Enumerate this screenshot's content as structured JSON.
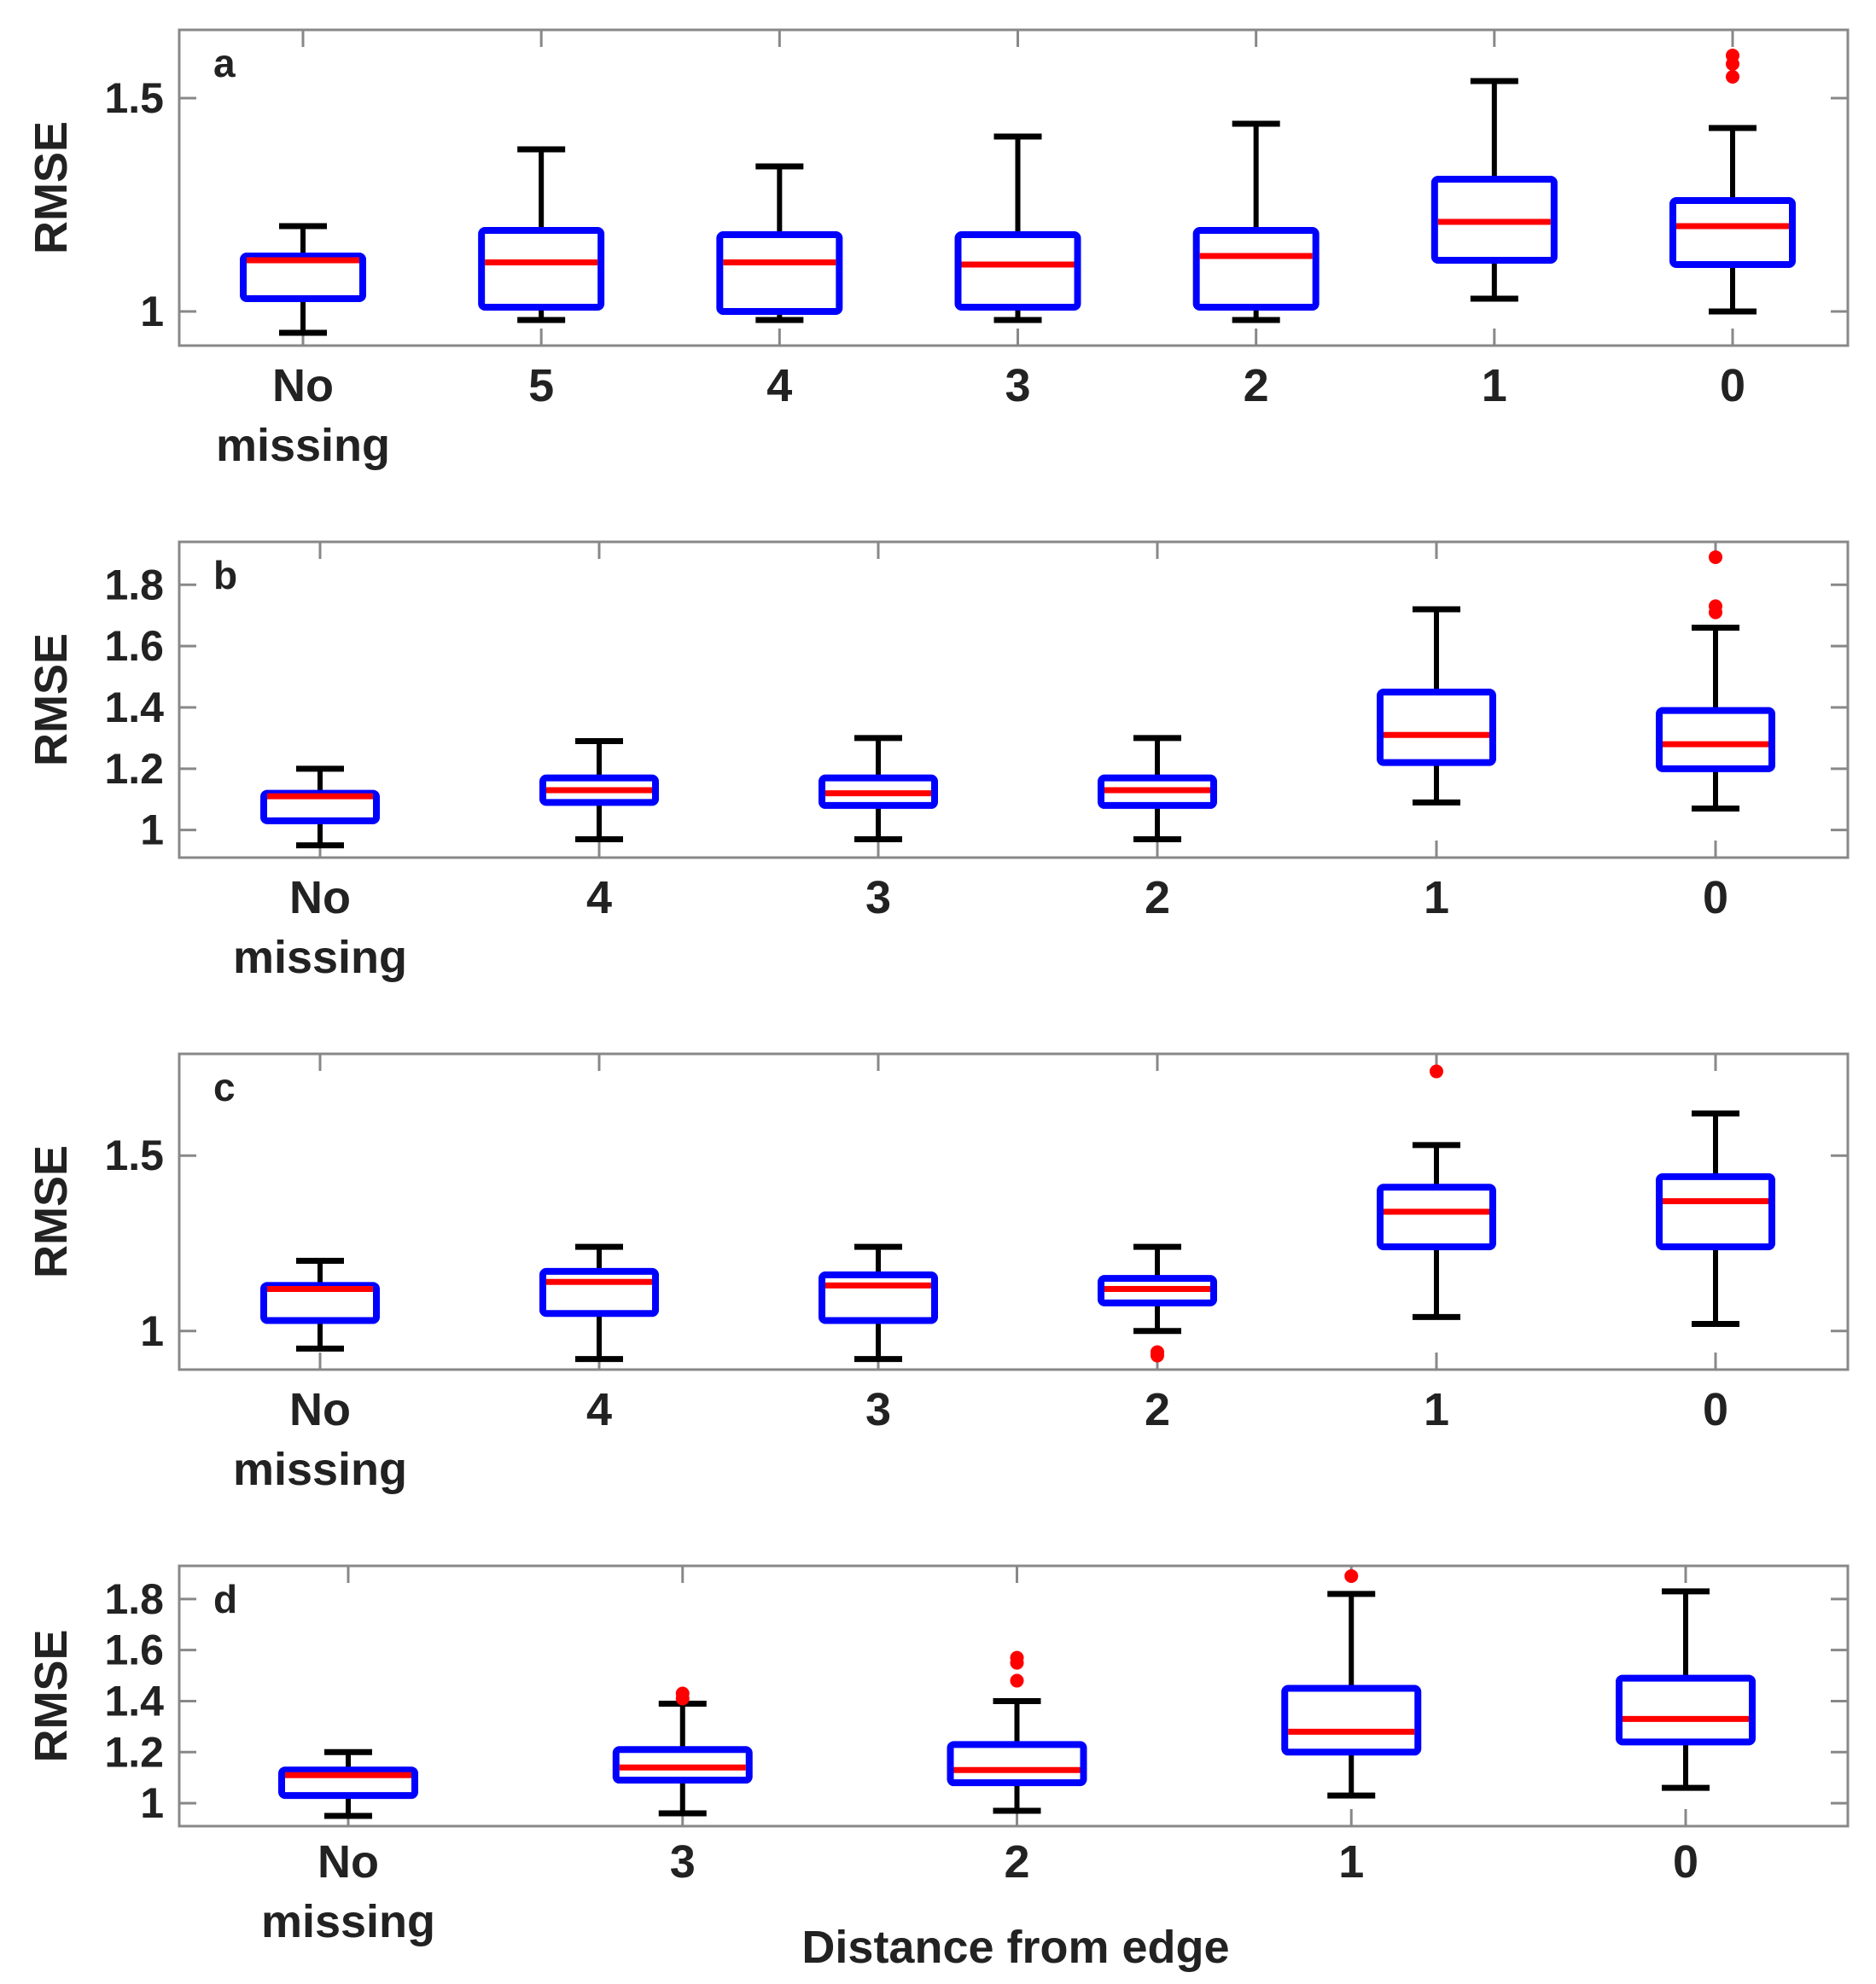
{
  "chart_data": [
    {
      "type": "box",
      "panel": "a",
      "ylabel": "RMSE",
      "ylim": [
        0.92,
        1.66
      ],
      "yticks": [
        1,
        1.5
      ],
      "ytick_labels": [
        "1",
        "1.5"
      ],
      "categories": [
        [
          "No",
          "missing"
        ],
        [
          "5"
        ],
        [
          "4"
        ],
        [
          "3"
        ],
        [
          "2"
        ],
        [
          "1"
        ],
        [
          "0"
        ]
      ],
      "boxes": [
        {
          "q1": 1.03,
          "median": 1.12,
          "q3": 1.13,
          "whisker_low": 0.95,
          "whisker_high": 1.2,
          "outliers": []
        },
        {
          "q1": 1.01,
          "median": 1.115,
          "q3": 1.19,
          "whisker_low": 0.98,
          "whisker_high": 1.38,
          "outliers": []
        },
        {
          "q1": 1.0,
          "median": 1.115,
          "q3": 1.18,
          "whisker_low": 0.98,
          "whisker_high": 1.34,
          "outliers": []
        },
        {
          "q1": 1.01,
          "median": 1.11,
          "q3": 1.18,
          "whisker_low": 0.98,
          "whisker_high": 1.41,
          "outliers": []
        },
        {
          "q1": 1.01,
          "median": 1.13,
          "q3": 1.19,
          "whisker_low": 0.98,
          "whisker_high": 1.44,
          "outliers": []
        },
        {
          "q1": 1.12,
          "median": 1.21,
          "q3": 1.31,
          "whisker_low": 1.03,
          "whisker_high": 1.54,
          "outliers": []
        },
        {
          "q1": 1.11,
          "median": 1.2,
          "q3": 1.26,
          "whisker_low": 1.0,
          "whisker_high": 1.43,
          "outliers": [
            1.55,
            1.58,
            1.6
          ]
        }
      ]
    },
    {
      "type": "box",
      "panel": "b",
      "ylabel": "RMSE",
      "ylim": [
        0.91,
        1.94
      ],
      "yticks": [
        1,
        1.2,
        1.4,
        1.6,
        1.8
      ],
      "ytick_labels": [
        "1",
        "1.2",
        "1.4",
        "1.6",
        "1.8"
      ],
      "categories": [
        [
          "No",
          "missing"
        ],
        [
          "4"
        ],
        [
          "3"
        ],
        [
          "2"
        ],
        [
          "1"
        ],
        [
          "0"
        ]
      ],
      "boxes": [
        {
          "q1": 1.03,
          "median": 1.11,
          "q3": 1.12,
          "whisker_low": 0.95,
          "whisker_high": 1.2,
          "outliers": []
        },
        {
          "q1": 1.09,
          "median": 1.13,
          "q3": 1.17,
          "whisker_low": 0.97,
          "whisker_high": 1.29,
          "outliers": []
        },
        {
          "q1": 1.08,
          "median": 1.12,
          "q3": 1.17,
          "whisker_low": 0.97,
          "whisker_high": 1.3,
          "outliers": []
        },
        {
          "q1": 1.08,
          "median": 1.13,
          "q3": 1.17,
          "whisker_low": 0.97,
          "whisker_high": 1.3,
          "outliers": []
        },
        {
          "q1": 1.22,
          "median": 1.31,
          "q3": 1.45,
          "whisker_low": 1.09,
          "whisker_high": 1.72,
          "outliers": []
        },
        {
          "q1": 1.2,
          "median": 1.28,
          "q3": 1.39,
          "whisker_low": 1.07,
          "whisker_high": 1.66,
          "outliers": [
            1.71,
            1.73,
            1.89
          ]
        }
      ]
    },
    {
      "type": "box",
      "panel": "c",
      "ylabel": "RMSE",
      "ylim": [
        0.89,
        1.79
      ],
      "yticks": [
        1,
        1.5
      ],
      "ytick_labels": [
        "1",
        "1.5"
      ],
      "categories": [
        [
          "No",
          "missing"
        ],
        [
          "4"
        ],
        [
          "3"
        ],
        [
          "2"
        ],
        [
          "1"
        ],
        [
          "0"
        ]
      ],
      "boxes": [
        {
          "q1": 1.03,
          "median": 1.12,
          "q3": 1.13,
          "whisker_low": 0.95,
          "whisker_high": 1.2,
          "outliers": []
        },
        {
          "q1": 1.05,
          "median": 1.14,
          "q3": 1.17,
          "whisker_low": 0.92,
          "whisker_high": 1.24,
          "outliers": []
        },
        {
          "q1": 1.03,
          "median": 1.13,
          "q3": 1.16,
          "whisker_low": 0.92,
          "whisker_high": 1.24,
          "outliers": []
        },
        {
          "q1": 1.08,
          "median": 1.12,
          "q3": 1.15,
          "whisker_low": 1.0,
          "whisker_high": 1.24,
          "outliers": [
            0.93,
            0.94
          ]
        },
        {
          "q1": 1.24,
          "median": 1.34,
          "q3": 1.41,
          "whisker_low": 1.04,
          "whisker_high": 1.53,
          "outliers": [
            1.74
          ]
        },
        {
          "q1": 1.24,
          "median": 1.37,
          "q3": 1.44,
          "whisker_low": 1.02,
          "whisker_high": 1.62,
          "outliers": []
        }
      ]
    },
    {
      "type": "box",
      "panel": "d",
      "ylabel": "RMSE",
      "xlabel": "Distance from edge",
      "ylim": [
        0.91,
        1.93
      ],
      "yticks": [
        1,
        1.2,
        1.4,
        1.6,
        1.8
      ],
      "ytick_labels": [
        "1",
        "1.2",
        "1.4",
        "1.6",
        "1.8"
      ],
      "categories": [
        [
          "No",
          "missing"
        ],
        [
          "3"
        ],
        [
          "2"
        ],
        [
          "1"
        ],
        [
          "0"
        ]
      ],
      "boxes": [
        {
          "q1": 1.03,
          "median": 1.11,
          "q3": 1.13,
          "whisker_low": 0.95,
          "whisker_high": 1.2,
          "outliers": []
        },
        {
          "q1": 1.09,
          "median": 1.14,
          "q3": 1.21,
          "whisker_low": 0.96,
          "whisker_high": 1.39,
          "outliers": [
            1.41,
            1.43
          ]
        },
        {
          "q1": 1.08,
          "median": 1.13,
          "q3": 1.23,
          "whisker_low": 0.97,
          "whisker_high": 1.4,
          "outliers": [
            1.48,
            1.55,
            1.57
          ]
        },
        {
          "q1": 1.2,
          "median": 1.28,
          "q3": 1.45,
          "whisker_low": 1.03,
          "whisker_high": 1.82,
          "outliers": [
            1.89
          ]
        },
        {
          "q1": 1.24,
          "median": 1.33,
          "q3": 1.49,
          "whisker_low": 1.06,
          "whisker_high": 1.83,
          "outliers": []
        }
      ]
    }
  ],
  "colors": {
    "box": "#0000ff",
    "median": "#ff0000",
    "whisker": "#000000",
    "outlier": "#ff0000",
    "axis": "#888888",
    "text": "#222222"
  }
}
